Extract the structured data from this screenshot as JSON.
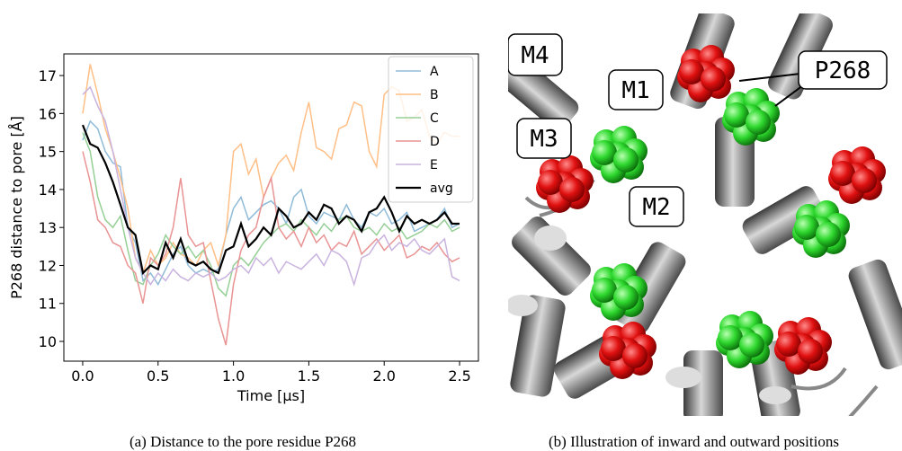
{
  "chart_data": {
    "type": "line",
    "xlabel": "Time [μs]",
    "ylabel": "P268 distance to pore [Å]",
    "xlim": [
      -0.125,
      2.625
    ],
    "ylim": [
      9.48,
      17.57
    ],
    "xticks": [
      {
        "value": 0,
        "label": "0.0"
      },
      0.5,
      {
        "value": 1,
        "label": "1.0"
      },
      1.5,
      {
        "value": 2,
        "label": "2.0"
      },
      2.5
    ],
    "yticks": [
      10,
      11,
      12,
      13,
      14,
      15,
      16,
      17
    ],
    "grid": false,
    "legend": "upper right",
    "x": [
      0,
      0.05,
      0.1,
      0.15,
      0.2,
      0.25,
      0.3,
      0.35,
      0.4,
      0.45,
      0.5,
      0.55,
      0.6,
      0.65,
      0.7,
      0.75,
      0.8,
      0.85,
      0.9,
      0.95,
      1,
      1.05,
      1.1,
      1.15,
      1.2,
      1.25,
      1.3,
      1.35,
      1.4,
      1.45,
      1.5,
      1.55,
      1.6,
      1.65,
      1.7,
      1.75,
      1.8,
      1.85,
      1.9,
      1.95,
      2,
      2.05,
      2.1,
      2.15,
      2.2,
      2.25,
      2.3,
      2.35,
      2.4,
      2.45,
      2.5
    ],
    "series": [
      {
        "name": "A",
        "color": "#8fbbd9",
        "values": [
          15.3,
          15.8,
          15.6,
          15.0,
          14.7,
          14.6,
          13.0,
          12.6,
          11.6,
          11.8,
          11.5,
          11.9,
          12.3,
          12.5,
          12.0,
          11.8,
          11.9,
          11.8,
          11.9,
          12.8,
          13.5,
          13.8,
          13.2,
          13.4,
          13.6,
          13.7,
          13.5,
          13.1,
          13.8,
          14.0,
          13.3,
          13.1,
          13.4,
          13.3,
          13.2,
          13.6,
          13.2,
          13.0,
          13.4,
          13.3,
          13.5,
          13.1,
          13.2,
          13.4,
          12.9,
          13.0,
          13.1,
          13.2,
          13.5,
          13.0,
          13.1
        ]
      },
      {
        "name": "B",
        "color": "#ffbf86",
        "values": [
          16.0,
          17.3,
          16.5,
          15.6,
          15.0,
          14.3,
          13.5,
          12.2,
          11.8,
          12.4,
          12.0,
          12.2,
          12.6,
          12.3,
          12.2,
          12.0,
          12.4,
          12.6,
          12.0,
          12.8,
          15.0,
          15.2,
          14.4,
          14.8,
          13.8,
          14.3,
          14.7,
          14.9,
          14.5,
          15.5,
          16.3,
          15.1,
          15.0,
          14.8,
          15.6,
          15.7,
          16.3,
          16.2,
          15.0,
          14.6,
          16.5,
          16.7,
          16.6,
          15.8,
          15.9,
          16.1,
          15.4,
          15.2,
          15.5,
          15.4,
          15.4
        ]
      },
      {
        "name": "C",
        "color": "#95cf95",
        "values": [
          15.5,
          15.0,
          13.8,
          13.2,
          13.0,
          13.3,
          12.4,
          11.6,
          11.5,
          12.0,
          12.3,
          12.8,
          12.5,
          12.3,
          12.5,
          12.2,
          12.4,
          12.0,
          11.4,
          11.2,
          12.0,
          12.2,
          12.0,
          12.3,
          12.6,
          12.8,
          13.0,
          13.1,
          12.9,
          13.2,
          13.0,
          12.8,
          13.1,
          12.9,
          13.2,
          13.3,
          13.0,
          12.9,
          13.0,
          12.8,
          13.1,
          12.9,
          13.0,
          12.7,
          12.8,
          12.9,
          13.1,
          13.0,
          13.2,
          12.9,
          13.0
        ]
      },
      {
        "name": "D",
        "color": "#e99393",
        "values": [
          15.0,
          14.2,
          13.2,
          13.0,
          12.6,
          12.5,
          12.0,
          11.8,
          11.0,
          12.2,
          12.0,
          12.3,
          13.0,
          14.3,
          12.8,
          12.5,
          12.6,
          11.6,
          10.6,
          9.9,
          11.5,
          12.4,
          12.8,
          13.0,
          13.8,
          14.3,
          13.0,
          12.7,
          12.9,
          12.5,
          13.0,
          12.6,
          12.8,
          12.4,
          12.6,
          12.5,
          12.9,
          12.3,
          12.5,
          12.7,
          12.4,
          12.6,
          12.8,
          12.2,
          12.3,
          12.5,
          12.4,
          12.6,
          12.3,
          12.1,
          12.2
        ]
      },
      {
        "name": "E",
        "color": "#c9b3de",
        "values": [
          16.5,
          16.7,
          16.2,
          15.8,
          15.0,
          14.0,
          13.0,
          12.2,
          11.8,
          11.5,
          11.8,
          11.6,
          11.9,
          11.7,
          11.6,
          11.8,
          11.7,
          11.8,
          11.6,
          11.7,
          11.9,
          12.0,
          11.8,
          12.2,
          12.0,
          12.2,
          11.8,
          12.1,
          12.0,
          11.9,
          12.1,
          12.3,
          12.0,
          12.4,
          12.3,
          12.1,
          11.5,
          12.2,
          12.3,
          12.6,
          12.8,
          12.4,
          12.6,
          12.5,
          12.7,
          12.4,
          12.3,
          12.5,
          12.7,
          11.7,
          11.6
        ]
      },
      {
        "name": "avg",
        "color": "#000000",
        "values": [
          15.7,
          15.2,
          15.1,
          14.7,
          14.2,
          13.6,
          13.0,
          12.8,
          11.8,
          12.0,
          11.9,
          12.6,
          12.2,
          12.7,
          12.1,
          12.0,
          12.1,
          11.9,
          11.8,
          12.4,
          12.5,
          13.1,
          12.5,
          12.7,
          13.0,
          12.8,
          13.5,
          13.3,
          13.0,
          13.1,
          13.4,
          13.2,
          13.6,
          13.5,
          13.1,
          13.3,
          13.2,
          12.9,
          13.4,
          13.5,
          13.8,
          13.4,
          12.9,
          13.3,
          13.1,
          13.2,
          13.1,
          13.2,
          13.4,
          13.1,
          13.1
        ]
      }
    ]
  },
  "illustration": {
    "labels": [
      "M4",
      "M1",
      "M3",
      "M2",
      "P268"
    ]
  },
  "captions": [
    "(a) Distance to the pore residue P268",
    "(b) Illustration of inward and outward positions"
  ]
}
